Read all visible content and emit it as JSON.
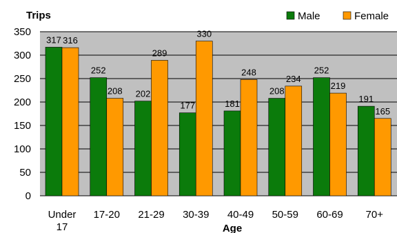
{
  "chart_data": {
    "type": "bar",
    "title": "",
    "ylabel": "Trips",
    "xlabel": "Age",
    "categories": [
      [
        "Under",
        "17"
      ],
      [
        "17-20"
      ],
      [
        "21-29"
      ],
      [
        "30-39"
      ],
      [
        "40-49"
      ],
      [
        "50-59"
      ],
      [
        "60-69"
      ],
      [
        "70+"
      ]
    ],
    "series": [
      {
        "name": "Male",
        "color": "#0b7b0b",
        "values": [
          317,
          252,
          202,
          177,
          181,
          208,
          252,
          191
        ]
      },
      {
        "name": "Female",
        "color": "#ff9900",
        "values": [
          316,
          208,
          289,
          330,
          248,
          234,
          219,
          165
        ]
      }
    ],
    "ylim": [
      0,
      350
    ],
    "yticks": [
      0,
      50,
      100,
      150,
      200,
      250,
      300,
      350
    ],
    "grid": true,
    "plot_background": "#c0c0c0",
    "legend_position": "top-right"
  }
}
